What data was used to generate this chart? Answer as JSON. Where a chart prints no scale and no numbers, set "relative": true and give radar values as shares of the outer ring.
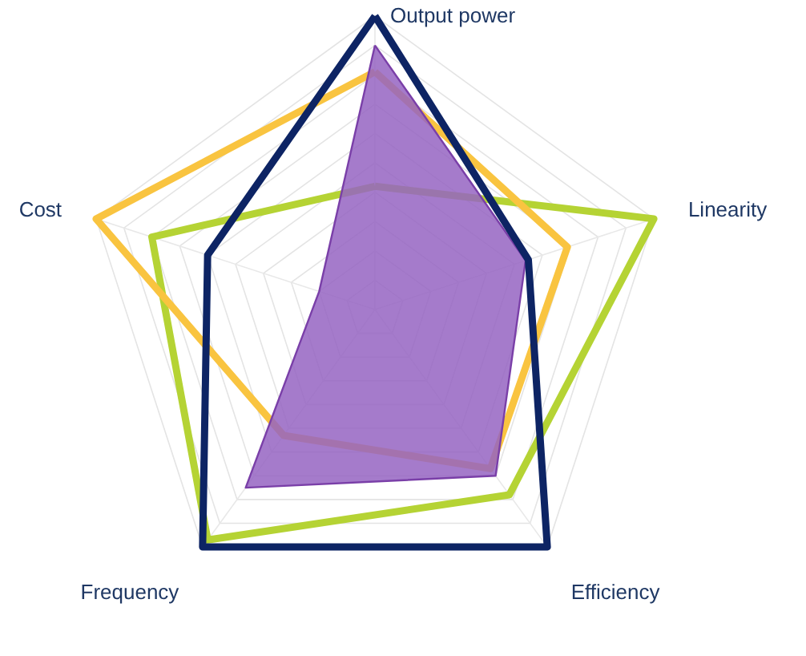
{
  "chart_data": {
    "type": "radar",
    "relative": true,
    "grid": true,
    "categories": [
      "Output power",
      "Linearity",
      "Efficiency",
      "Frequency",
      "Cost"
    ],
    "series": [
      {
        "color": "#b5d334",
        "values": [
          0.42,
          1,
          0.78,
          0.97,
          0.8
        ]
      },
      {
        "color": "#f9c440",
        "values": [
          0.81,
          0.69,
          0.67,
          0.53,
          1
        ]
      },
      {
        "type": "area",
        "color": "#9564c2",
        "values": [
          0.9,
          0.54,
          0.7,
          0.75,
          0.2
        ]
      },
      {
        "color": "#0d2464",
        "values": [
          1,
          0.55,
          1,
          1,
          0.6
        ]
      }
    ]
  }
}
